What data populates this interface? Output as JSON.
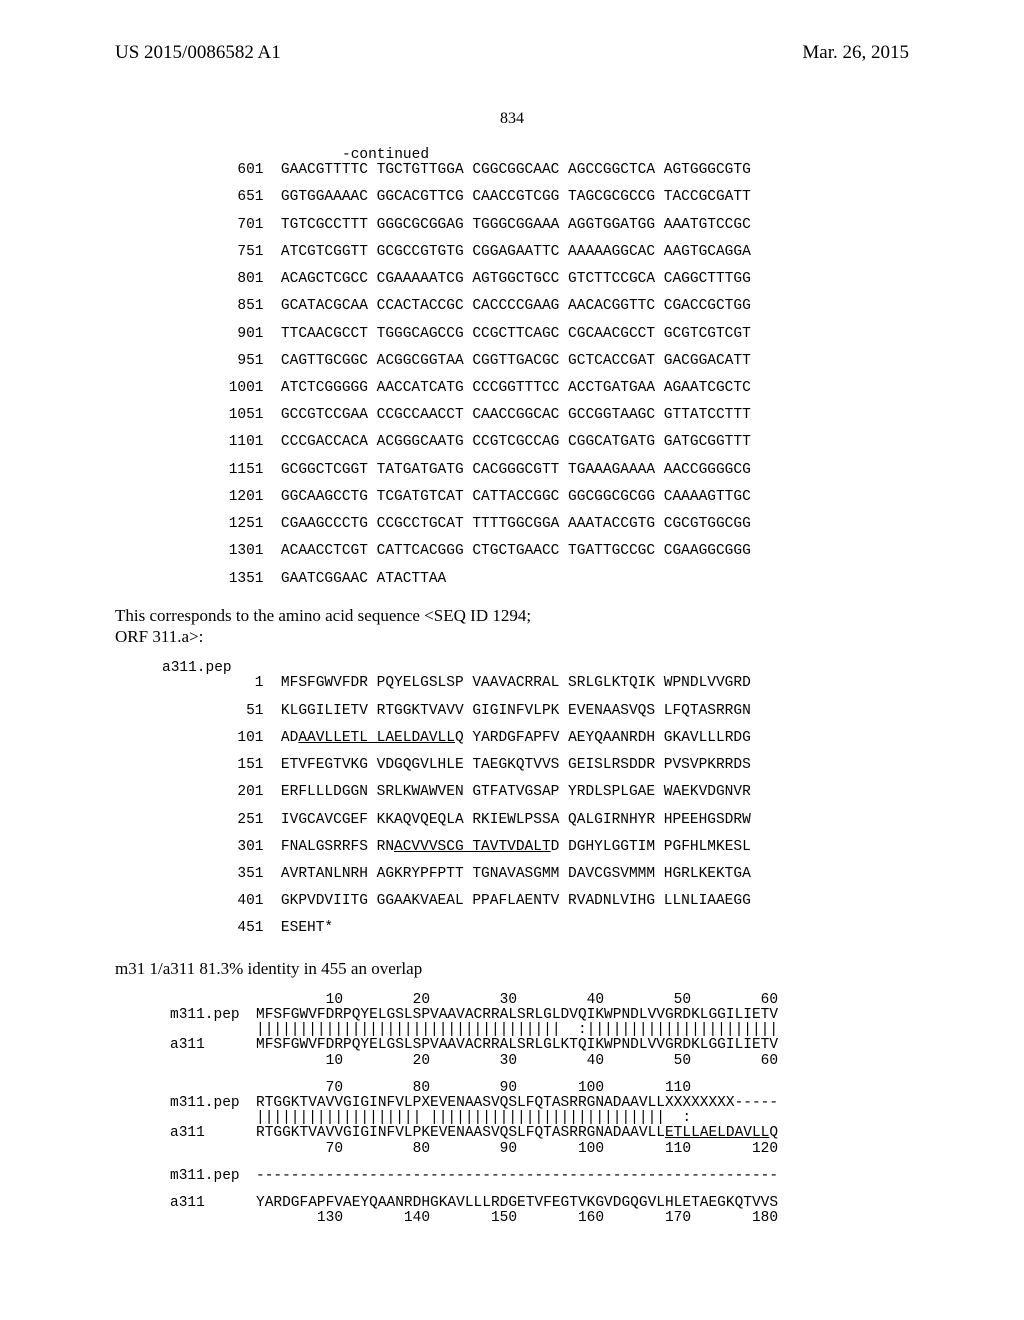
{
  "header": {
    "left": "US 2015/0086582 A1",
    "right": "Mar. 26, 2015",
    "page": "834"
  },
  "continued_label": "-continued",
  "dna": {
    "start_indices": [
      "  601",
      "  651",
      "  701",
      "  751",
      "  801",
      "  851",
      "  901",
      "  951",
      " 1001",
      " 1051",
      " 1101",
      " 1151",
      " 1201",
      " 1251",
      " 1301",
      " 1351"
    ],
    "rows": [
      [
        "GAACGTTTTC",
        "TGCTGTTGGA",
        "CGGCGGCAAC",
        "AGCCGGCTCA",
        "AGTGGGCGTG"
      ],
      [
        "GGTGGAAAAC",
        "GGCACGTTCG",
        "CAACCGTCGG",
        "TAGCGCGCCG",
        "TACCGCGATT"
      ],
      [
        "TGTCGCCTTT",
        "GGGCGCGGAG",
        "TGGGCGGAAA",
        "AGGTGGATGG",
        "AAATGTCCGC"
      ],
      [
        "ATCGTCGGTT",
        "GCGCCGTGTG",
        "CGGAGAATTC",
        "AAAAAGGCAC",
        "AAGTGCAGGA"
      ],
      [
        "ACAGCTCGCC",
        "CGAAAAATCG",
        "AGTGGCTGCC",
        "GTCTTCCGCA",
        "CAGGCTTTGG"
      ],
      [
        "GCATACGCAA",
        "CCACTACCGC",
        "CACCCCGAAG",
        "AACACGGTTC",
        "CGACCGCTGG"
      ],
      [
        "TTCAACGCCT",
        "TGGGCAGCCG",
        "CCGCTTCAGC",
        "CGCAACGCCT",
        "GCGTCGTCGT"
      ],
      [
        "CAGTTGCGGC",
        "ACGGCGGTAA",
        "CGGTTGACGC",
        "GCTCACCGAT",
        "GACGGACATT"
      ],
      [
        "ATCTCGGGGG",
        "AACCATCATG",
        "CCCGGTTTCC",
        "ACCTGATGAA",
        "AGAATCGCTC"
      ],
      [
        "GCCGTCCGAA",
        "CCGCCAACCT",
        "CAACCGGCAC",
        "GCCGGTAAGC",
        "GTTATCCTTT"
      ],
      [
        "CCCGACCACA",
        "ACGGGCAATG",
        "CCGTCGCCAG",
        "CGGCATGATG",
        "GATGCGGTTT"
      ],
      [
        "GCGGCTCGGT",
        "TATGATGATG",
        "CACGGGCGTT",
        "TGAAAGAAAA",
        "AACCGGGGCG"
      ],
      [
        "GGCAAGCCTG",
        "TCGATGTCAT",
        "CATTACCGGC",
        "GGCGGCGCGG",
        "CAAAAGTTGC"
      ],
      [
        "CGAAGCCCTG",
        "CCGCCTGCAT",
        "TTTTGGCGGA",
        "AAATACCGTG",
        "CGCGTGGCGG"
      ],
      [
        "ACAACCTCGT",
        "CATTCACGGG",
        "CTGCTGAACC",
        "TGATTGCCGC",
        "CGAAGGCGGG"
      ],
      [
        "GAATCGGAAC",
        "ATACTTAA",
        "",
        "",
        ""
      ]
    ]
  },
  "bridge_text": {
    "line1": "This corresponds to the amino acid sequence <SEQ ID 1294;",
    "line2": "ORF 311.a>:"
  },
  "pep": {
    "name": "a311.pep",
    "start_indices": [
      "    1",
      "   51",
      "  101",
      "  151",
      "  201",
      "  251",
      "  301",
      "  351",
      "  401",
      "  451"
    ],
    "rows": [
      {
        "pre": "MFSFGWVFDR PQYELGSLSP VAAVACRRAL SRLGLKTQIK WPNDLVVGRD",
        "u": "",
        "post": ""
      },
      {
        "pre": "KLGGILIETV RTGGKTVAVV GIGINFVLPK EVENAASVQS LFQTASRRGN",
        "u": "",
        "post": ""
      },
      {
        "pre": "AD",
        "u": "AAVLLETL LAELDAVLL",
        "post": "Q YARDGFAPFV AEYQAANRDH GKAVLLLRDG"
      },
      {
        "pre": "ETVFEGTVKG VDGQGVLHLE TAEGKQTVVS GEISLRSDDR PVSVPKRRDS",
        "u": "",
        "post": ""
      },
      {
        "pre": "ERFLLLDGGN SRLKWAWVEN GTFATVGSAP YRDLSPLGAE WAEKVDGNVR",
        "u": "",
        "post": ""
      },
      {
        "pre": "IVGCAVCGEF KKAQVQEQLA RKIEWLPSSA QALGIRNHYR HPEEHGSDRW",
        "u": "",
        "post": ""
      },
      {
        "pre": "FNALGSRRFS RN",
        "u": "ACVVVSCG TAVTVDALT",
        "post": "D DGHYLGGTIM PGFHLMKESL"
      },
      {
        "pre": "AVRTANLNRH AGKRYPFPTT TGNAVASGMM DAVCGSVMMM HGRLKEKTGA",
        "u": "",
        "post": ""
      },
      {
        "pre": "GKPVDVIITG GGAAKVAEAL PPAFLAENTV RVADNLVIHG LLNLIAAEGG",
        "u": "",
        "post": ""
      },
      {
        "pre": "ESEHT*",
        "u": "",
        "post": ""
      }
    ]
  },
  "ident": "m31 1/a311 81.3% identity in 455 an overlap",
  "align": {
    "block1": {
      "ruler_top": "        10        20        30        40        50        60",
      "label_a": "m311.pep",
      "seq_a": "MFSFGWVFDRPQYELGSLSPVAAVACRRALSRLGLDVQIKWPNDLVVGRDKLGGILIETV",
      "match": "|||||||||||||||||||||||||||||||||||  :||||||||||||||||||||||",
      "label_b": "a311",
      "seq_b": "MFSFGWVFDRPQYELGSLSPVAAVACRRALSRLGLKTQIKWPNDLVVGRDKLGGILIETV",
      "ruler_bot": "        10        20        30        40        50        60"
    },
    "block2": {
      "ruler_top": "        70        80        90       100       110",
      "label_a": "m311.pep",
      "seq_a": "RTGGKTVAVVGIGINFVLPXEVENAASVQSLFQTASRRGNADAAVLLXXXXXXXX-----",
      "match_pre": "||||||||||||||||||| |||||||||||||||||||||||||||  :",
      "label_b": "a311",
      "seq_b_pre": "RTGGKTVAVVGIGINFVLPKEVENAASVQSLFQTASRRGNADAAVLL",
      "seq_b_u": "ETLLAELDAVLL",
      "seq_b_post": "Q",
      "ruler_bot": "        70        80        90       100       110       120"
    },
    "block3": {
      "label_a": "m311.pep",
      "dash": "------------------------------------------------------------",
      "label_b": "a311",
      "seq_b": "YARDGFAPFVAEYQAANRDHGKAVLLLRDGETVFEGTVKGVDGQGVLHLETAEGKQTVVS",
      "ruler_bot": "       130       140       150       160       170       180"
    }
  }
}
